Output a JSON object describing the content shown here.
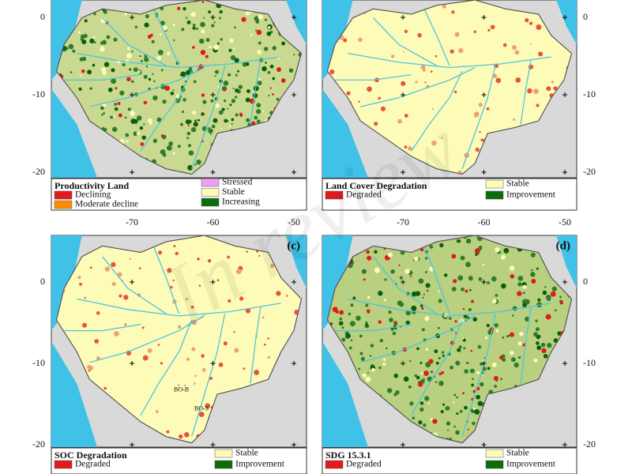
{
  "axes": {
    "lat_ticks": [
      0,
      -10,
      -20
    ],
    "lon_ticks": [
      -70,
      -60,
      -50
    ]
  },
  "watermark": "In review",
  "panels": [
    {
      "legend": {
        "title": "Productivity Land",
        "left": [
          {
            "label": "Declining",
            "color": "#e31a1c"
          },
          {
            "label": "Moderate decline",
            "color": "#ff8c00"
          }
        ],
        "right": [
          {
            "label": "Stressed",
            "color": "#f29cf2"
          },
          {
            "label": "Stable",
            "color": "#fdfbb8"
          },
          {
            "label": "Increasing",
            "color": "#0b6e0b"
          }
        ]
      }
    },
    {
      "legend": {
        "title": "Land Cover Degradation",
        "left": [
          {
            "label": "Degraded",
            "color": "#e31a1c"
          }
        ],
        "right": [
          {
            "label": "Stable",
            "color": "#fdfbb8"
          },
          {
            "label": "Improvement",
            "color": "#0b6e0b"
          }
        ]
      }
    },
    {
      "label": "(c)",
      "annotations": [
        "BO-B",
        "BO-S"
      ],
      "legend": {
        "title": "SOC Degradation",
        "left": [
          {
            "label": "Degraded",
            "color": "#e31a1c"
          }
        ],
        "right": [
          {
            "label": "Stable",
            "color": "#fdfbb8"
          },
          {
            "label": "Improvement",
            "color": "#0b6e0b"
          }
        ]
      }
    },
    {
      "label": "(d)",
      "legend": {
        "title": "SDG 15.3.1",
        "left": [
          {
            "label": "Degraded",
            "color": "#e31a1c"
          }
        ],
        "right": [
          {
            "label": "Stable",
            "color": "#fdfbb8"
          },
          {
            "label": "Improvement",
            "color": "#0b6e0b"
          }
        ]
      }
    }
  ]
}
